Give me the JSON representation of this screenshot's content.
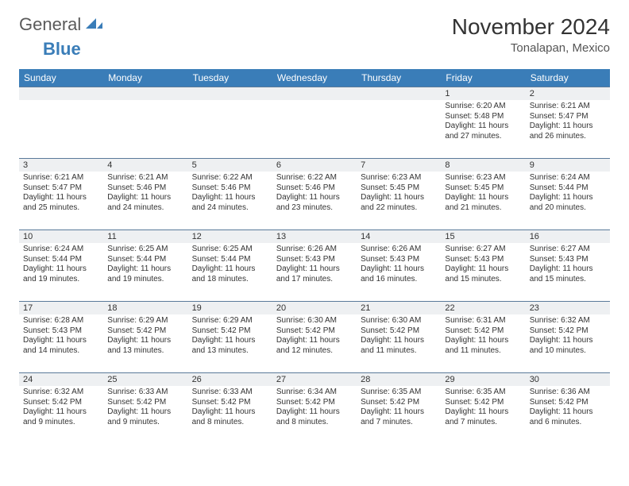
{
  "logo": {
    "text1": "General",
    "text2": "Blue",
    "text1_color": "#5a5a5a",
    "text2_color": "#3a7db8",
    "icon_color": "#3a7db8"
  },
  "title": "November 2024",
  "location": "Tonalapan, Mexico",
  "colors": {
    "header_bg": "#3a7db8",
    "header_text": "#ffffff",
    "daynum_bg": "#eef0f2",
    "cell_border": "#5a7a9a",
    "body_text": "#333333",
    "background": "#ffffff"
  },
  "typography": {
    "title_fontsize": 28,
    "location_fontsize": 15,
    "dayheader_fontsize": 12,
    "daynum_fontsize": 11,
    "daydata_fontsize": 10
  },
  "day_headers": [
    "Sunday",
    "Monday",
    "Tuesday",
    "Wednesday",
    "Thursday",
    "Friday",
    "Saturday"
  ],
  "weeks": [
    [
      {
        "n": "",
        "sunrise": "",
        "sunset": "",
        "daylight": ""
      },
      {
        "n": "",
        "sunrise": "",
        "sunset": "",
        "daylight": ""
      },
      {
        "n": "",
        "sunrise": "",
        "sunset": "",
        "daylight": ""
      },
      {
        "n": "",
        "sunrise": "",
        "sunset": "",
        "daylight": ""
      },
      {
        "n": "",
        "sunrise": "",
        "sunset": "",
        "daylight": ""
      },
      {
        "n": "1",
        "sunrise": "Sunrise: 6:20 AM",
        "sunset": "Sunset: 5:48 PM",
        "daylight": "Daylight: 11 hours and 27 minutes."
      },
      {
        "n": "2",
        "sunrise": "Sunrise: 6:21 AM",
        "sunset": "Sunset: 5:47 PM",
        "daylight": "Daylight: 11 hours and 26 minutes."
      }
    ],
    [
      {
        "n": "3",
        "sunrise": "Sunrise: 6:21 AM",
        "sunset": "Sunset: 5:47 PM",
        "daylight": "Daylight: 11 hours and 25 minutes."
      },
      {
        "n": "4",
        "sunrise": "Sunrise: 6:21 AM",
        "sunset": "Sunset: 5:46 PM",
        "daylight": "Daylight: 11 hours and 24 minutes."
      },
      {
        "n": "5",
        "sunrise": "Sunrise: 6:22 AM",
        "sunset": "Sunset: 5:46 PM",
        "daylight": "Daylight: 11 hours and 24 minutes."
      },
      {
        "n": "6",
        "sunrise": "Sunrise: 6:22 AM",
        "sunset": "Sunset: 5:46 PM",
        "daylight": "Daylight: 11 hours and 23 minutes."
      },
      {
        "n": "7",
        "sunrise": "Sunrise: 6:23 AM",
        "sunset": "Sunset: 5:45 PM",
        "daylight": "Daylight: 11 hours and 22 minutes."
      },
      {
        "n": "8",
        "sunrise": "Sunrise: 6:23 AM",
        "sunset": "Sunset: 5:45 PM",
        "daylight": "Daylight: 11 hours and 21 minutes."
      },
      {
        "n": "9",
        "sunrise": "Sunrise: 6:24 AM",
        "sunset": "Sunset: 5:44 PM",
        "daylight": "Daylight: 11 hours and 20 minutes."
      }
    ],
    [
      {
        "n": "10",
        "sunrise": "Sunrise: 6:24 AM",
        "sunset": "Sunset: 5:44 PM",
        "daylight": "Daylight: 11 hours and 19 minutes."
      },
      {
        "n": "11",
        "sunrise": "Sunrise: 6:25 AM",
        "sunset": "Sunset: 5:44 PM",
        "daylight": "Daylight: 11 hours and 19 minutes."
      },
      {
        "n": "12",
        "sunrise": "Sunrise: 6:25 AM",
        "sunset": "Sunset: 5:44 PM",
        "daylight": "Daylight: 11 hours and 18 minutes."
      },
      {
        "n": "13",
        "sunrise": "Sunrise: 6:26 AM",
        "sunset": "Sunset: 5:43 PM",
        "daylight": "Daylight: 11 hours and 17 minutes."
      },
      {
        "n": "14",
        "sunrise": "Sunrise: 6:26 AM",
        "sunset": "Sunset: 5:43 PM",
        "daylight": "Daylight: 11 hours and 16 minutes."
      },
      {
        "n": "15",
        "sunrise": "Sunrise: 6:27 AM",
        "sunset": "Sunset: 5:43 PM",
        "daylight": "Daylight: 11 hours and 15 minutes."
      },
      {
        "n": "16",
        "sunrise": "Sunrise: 6:27 AM",
        "sunset": "Sunset: 5:43 PM",
        "daylight": "Daylight: 11 hours and 15 minutes."
      }
    ],
    [
      {
        "n": "17",
        "sunrise": "Sunrise: 6:28 AM",
        "sunset": "Sunset: 5:43 PM",
        "daylight": "Daylight: 11 hours and 14 minutes."
      },
      {
        "n": "18",
        "sunrise": "Sunrise: 6:29 AM",
        "sunset": "Sunset: 5:42 PM",
        "daylight": "Daylight: 11 hours and 13 minutes."
      },
      {
        "n": "19",
        "sunrise": "Sunrise: 6:29 AM",
        "sunset": "Sunset: 5:42 PM",
        "daylight": "Daylight: 11 hours and 13 minutes."
      },
      {
        "n": "20",
        "sunrise": "Sunrise: 6:30 AM",
        "sunset": "Sunset: 5:42 PM",
        "daylight": "Daylight: 11 hours and 12 minutes."
      },
      {
        "n": "21",
        "sunrise": "Sunrise: 6:30 AM",
        "sunset": "Sunset: 5:42 PM",
        "daylight": "Daylight: 11 hours and 11 minutes."
      },
      {
        "n": "22",
        "sunrise": "Sunrise: 6:31 AM",
        "sunset": "Sunset: 5:42 PM",
        "daylight": "Daylight: 11 hours and 11 minutes."
      },
      {
        "n": "23",
        "sunrise": "Sunrise: 6:32 AM",
        "sunset": "Sunset: 5:42 PM",
        "daylight": "Daylight: 11 hours and 10 minutes."
      }
    ],
    [
      {
        "n": "24",
        "sunrise": "Sunrise: 6:32 AM",
        "sunset": "Sunset: 5:42 PM",
        "daylight": "Daylight: 11 hours and 9 minutes."
      },
      {
        "n": "25",
        "sunrise": "Sunrise: 6:33 AM",
        "sunset": "Sunset: 5:42 PM",
        "daylight": "Daylight: 11 hours and 9 minutes."
      },
      {
        "n": "26",
        "sunrise": "Sunrise: 6:33 AM",
        "sunset": "Sunset: 5:42 PM",
        "daylight": "Daylight: 11 hours and 8 minutes."
      },
      {
        "n": "27",
        "sunrise": "Sunrise: 6:34 AM",
        "sunset": "Sunset: 5:42 PM",
        "daylight": "Daylight: 11 hours and 8 minutes."
      },
      {
        "n": "28",
        "sunrise": "Sunrise: 6:35 AM",
        "sunset": "Sunset: 5:42 PM",
        "daylight": "Daylight: 11 hours and 7 minutes."
      },
      {
        "n": "29",
        "sunrise": "Sunrise: 6:35 AM",
        "sunset": "Sunset: 5:42 PM",
        "daylight": "Daylight: 11 hours and 7 minutes."
      },
      {
        "n": "30",
        "sunrise": "Sunrise: 6:36 AM",
        "sunset": "Sunset: 5:42 PM",
        "daylight": "Daylight: 11 hours and 6 minutes."
      }
    ]
  ]
}
